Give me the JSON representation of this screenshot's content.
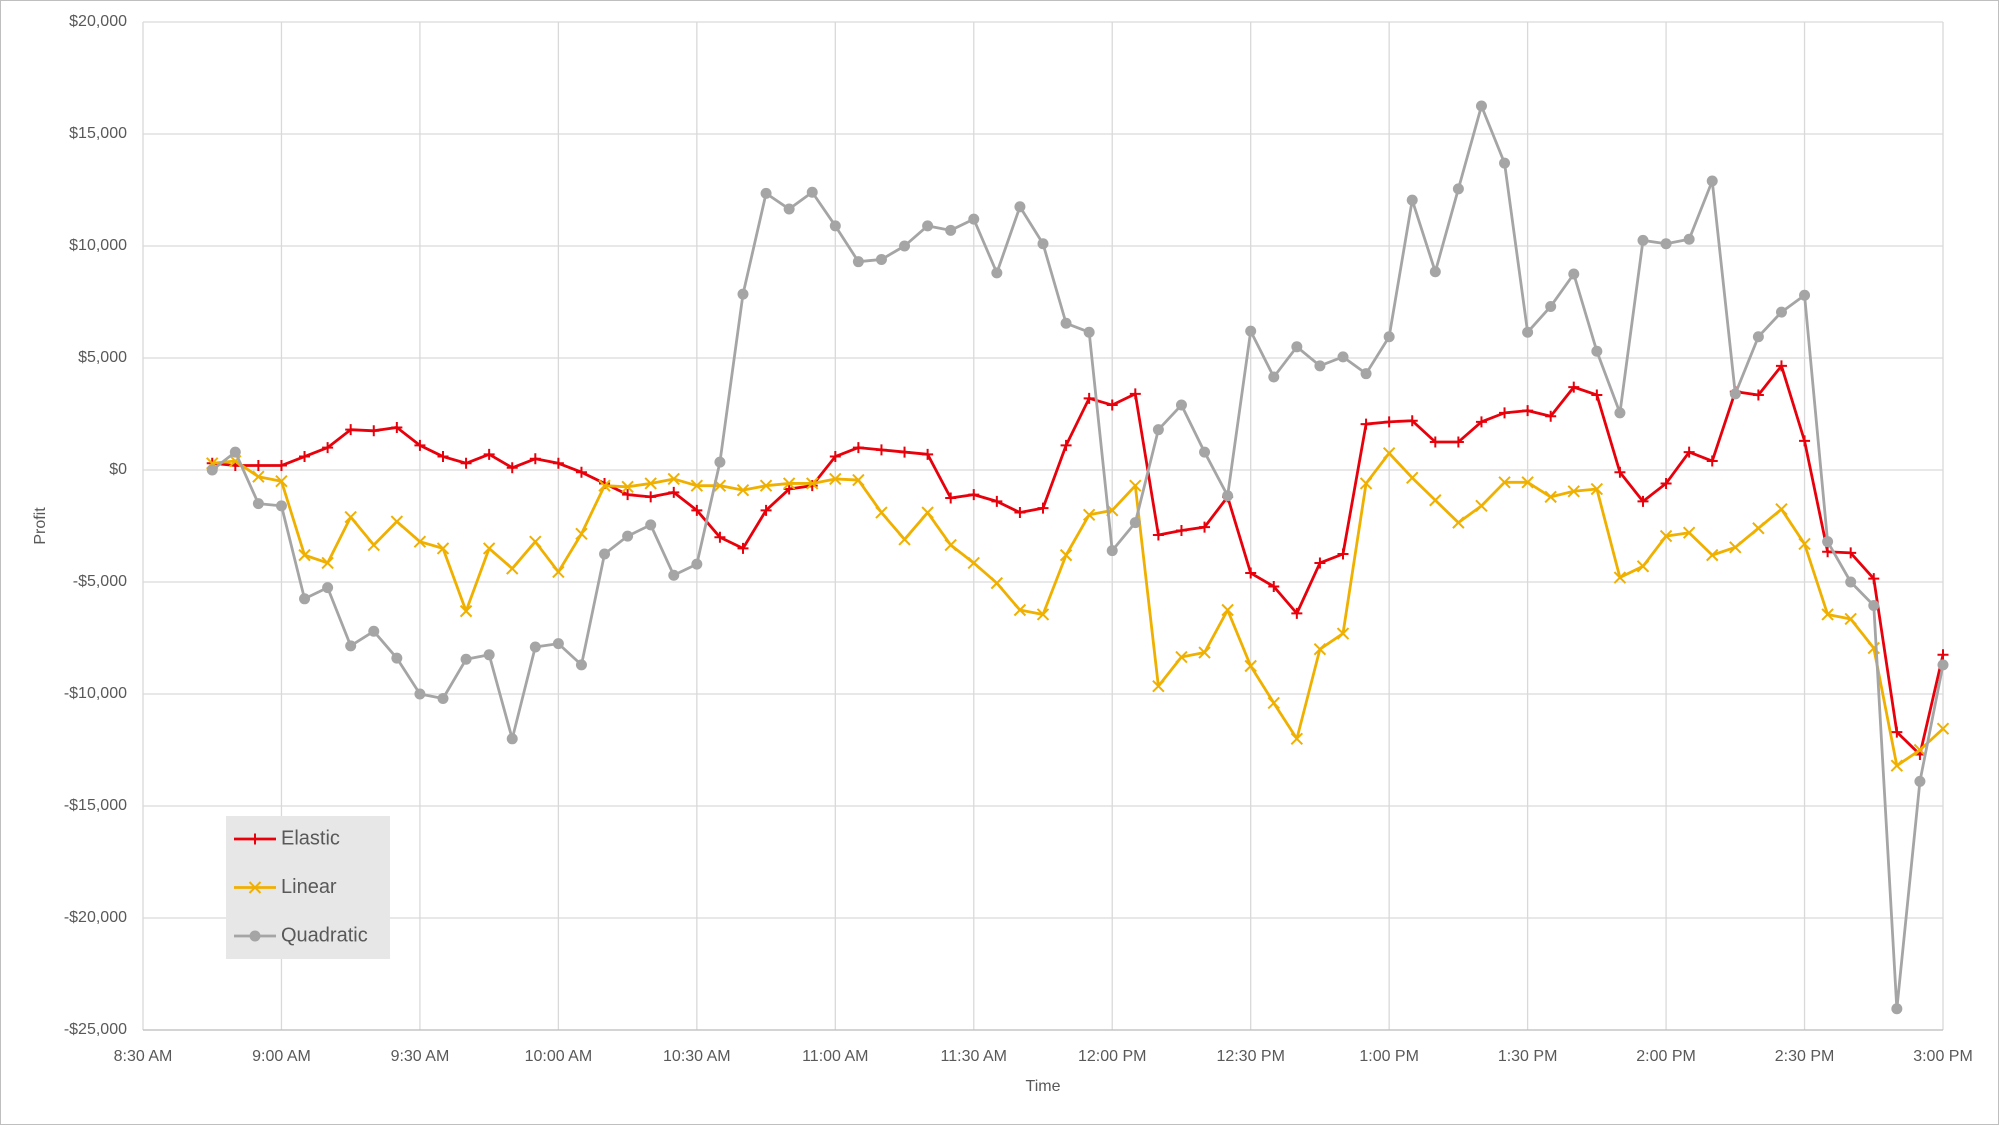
{
  "chart_data": {
    "type": "line",
    "x_label": "Time",
    "y_label": "Profit",
    "xlim": [
      510,
      900
    ],
    "xticks": [
      {
        "value": 510,
        "label": "8:30 AM"
      },
      {
        "value": 540,
        "label": "9:00 AM"
      },
      {
        "value": 570,
        "label": "9:30 AM"
      },
      {
        "value": 600,
        "label": "10:00 AM"
      },
      {
        "value": 630,
        "label": "10:30 AM"
      },
      {
        "value": 660,
        "label": "11:00 AM"
      },
      {
        "value": 690,
        "label": "11:30 AM"
      },
      {
        "value": 720,
        "label": "12:00 PM"
      },
      {
        "value": 750,
        "label": "12:30 PM"
      },
      {
        "value": 780,
        "label": "1:00 PM"
      },
      {
        "value": 810,
        "label": "1:30 PM"
      },
      {
        "value": 840,
        "label": "2:00 PM"
      },
      {
        "value": 870,
        "label": "2:30 PM"
      },
      {
        "value": 900,
        "label": "3:00 PM"
      }
    ],
    "ylim": [
      -25000,
      20000
    ],
    "yticks": [
      {
        "value": -25000,
        "label": "-$25,000"
      },
      {
        "value": -20000,
        "label": "-$20,000"
      },
      {
        "value": -15000,
        "label": "-$15,000"
      },
      {
        "value": -10000,
        "label": "-$10,000"
      },
      {
        "value": -5000,
        "label": "-$5,000"
      },
      {
        "value": 0,
        "label": "$0"
      },
      {
        "value": 5000,
        "label": "$5,000"
      },
      {
        "value": 10000,
        "label": "$10,000"
      },
      {
        "value": 15000,
        "label": "$15,000"
      },
      {
        "value": 20000,
        "label": "$20,000"
      }
    ],
    "grid": true,
    "legend": "lower-left",
    "x": [
      525,
      530,
      535,
      540,
      545,
      550,
      555,
      560,
      565,
      570,
      575,
      580,
      585,
      590,
      595,
      600,
      605,
      610,
      615,
      620,
      625,
      630,
      635,
      640,
      645,
      650,
      655,
      660,
      665,
      670,
      675,
      680,
      685,
      690,
      695,
      700,
      705,
      710,
      715,
      720,
      725,
      730,
      735,
      740,
      745,
      750,
      755,
      760,
      765,
      770,
      775,
      780,
      785,
      790,
      795,
      800,
      805,
      810,
      815,
      820,
      825,
      830,
      835,
      840,
      845,
      850,
      855,
      860,
      865,
      870,
      875,
      880,
      885,
      890,
      895,
      900
    ],
    "series": [
      {
        "name": "Elastic",
        "color": "#e8000b",
        "marker": "plus",
        "values": [
          300,
          200,
          200,
          200,
          600,
          1000,
          1800,
          1750,
          1900,
          1100,
          600,
          300,
          700,
          100,
          500,
          300,
          -100,
          -600,
          -1100,
          -1200,
          -1000,
          -1800,
          -3000,
          -3500,
          -1800,
          -850,
          -700,
          600,
          1000,
          900,
          800,
          700,
          -1250,
          -1100,
          -1400,
          -1900,
          -1700,
          1100,
          3200,
          2900,
          3400,
          -2900,
          -2700,
          -2550,
          -1200,
          -4600,
          -5200,
          -6400,
          -4150,
          -3750,
          2050,
          2150,
          2200,
          1250,
          1250,
          2150,
          2550,
          2650,
          2400,
          3700,
          3350,
          -100,
          -1400,
          -600,
          800,
          400,
          3500,
          3350,
          4650,
          1300,
          -3650,
          -3700,
          -4850,
          -11700,
          -12700,
          -8250
        ]
      },
      {
        "name": "Linear",
        "color": "#f0b000",
        "marker": "cross",
        "values": [
          300,
          400,
          -300,
          -500,
          -3800,
          -4150,
          -2100,
          -3350,
          -2300,
          -3200,
          -3500,
          -6300,
          -3500,
          -4400,
          -3200,
          -4550,
          -2850,
          -700,
          -750,
          -600,
          -400,
          -700,
          -700,
          -900,
          -700,
          -600,
          -600,
          -400,
          -450,
          -1900,
          -3100,
          -1900,
          -3350,
          -4150,
          -5050,
          -6250,
          -6450,
          -3800,
          -2000,
          -1800,
          -700,
          -9650,
          -8350,
          -8150,
          -6250,
          -8750,
          -10400,
          -12000,
          -8000,
          -7300,
          -600,
          750,
          -350,
          -1350,
          -2350,
          -1600,
          -550,
          -550,
          -1200,
          -950,
          -850,
          -4800,
          -4300,
          -2950,
          -2800,
          -3800,
          -3450,
          -2600,
          -1750,
          -3300,
          -6450,
          -6650,
          -7950,
          -13200,
          -12500,
          -11550
        ]
      },
      {
        "name": "Quadratic",
        "color": "#a5a5a5",
        "marker": "circle",
        "values": [
          0,
          800,
          -1500,
          -1600,
          -5750,
          -5250,
          -7850,
          -7200,
          -8400,
          -10000,
          -10200,
          -8450,
          -8250,
          -12000,
          -7900,
          -7750,
          -8700,
          -3750,
          -2950,
          -2450,
          -4700,
          -4200,
          350,
          7850,
          12350,
          11650,
          12400,
          10900,
          9300,
          9400,
          10000,
          10900,
          10700,
          11200,
          8800,
          11750,
          10100,
          6550,
          6150,
          -3600,
          -2350,
          1800,
          2900,
          800,
          -1150,
          6200,
          4150,
          5500,
          4650,
          5050,
          4300,
          5950,
          12050,
          8850,
          12550,
          16250,
          13700,
          6150,
          7300,
          8750,
          5300,
          2550,
          10250,
          10100,
          10300,
          12900,
          3400,
          5950,
          7050,
          7800,
          -3200,
          -5000,
          -6050,
          -24050,
          -13900,
          -8700
        ]
      }
    ]
  }
}
